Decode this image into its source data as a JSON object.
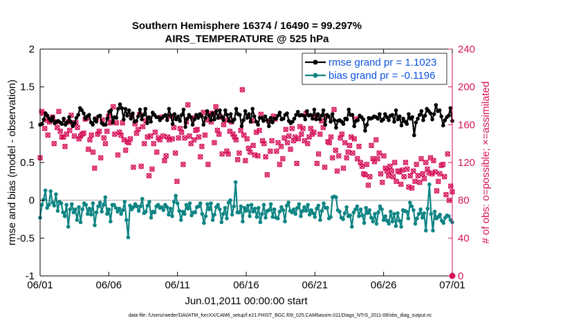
{
  "chart_data": {
    "type": "line",
    "title": "Southern Hemisphere 16374 / 16490 = 99.297%",
    "subtitle": "AIRS_TEMPERATURE @ 525 hPa",
    "xlabel": "Jun.01,2011 00:00:00 start",
    "ylabel": "rmse and bias (model - observation)",
    "y2label": "# of obs: o=possible; ×=assimilated",
    "footnote": "data file: /Users/raeder/DAI/ATM_forcXX/CAM6_setup/f.e21.FHIST_BGC.f09_025.CAM6assim.011/Diags_NTrS_2011-06/obs_diag_output.nc",
    "x_ticks": [
      "06/01",
      "06/06",
      "06/11",
      "06/16",
      "06/21",
      "06/26",
      "07/01"
    ],
    "xlim_days": [
      0,
      30
    ],
    "ylim": [
      -1,
      2
    ],
    "y_ticks": [
      "-1",
      "-0.5",
      "0",
      "0.5",
      "1",
      "1.5",
      "2"
    ],
    "y2lim": [
      0,
      240
    ],
    "y2_ticks": [
      "0",
      "40",
      "80",
      "120",
      "160",
      "200",
      "240"
    ],
    "grid": false,
    "legend_position": "top-right",
    "colors": {
      "rmse": "#000000",
      "bias": "#0f8584",
      "obs": "#d6125a",
      "zero_line": "#c0c0c0",
      "legend_text": "#0b52e0"
    },
    "series": [
      {
        "name": "rmse grand pr = 1.1023",
        "values": [
          1.0,
          1.01,
          1.07,
          1.15,
          1.12,
          1.08,
          1.05,
          1.1,
          1.02,
          1.04,
          1.05,
          1.03,
          1.01,
          1.08,
          1.0,
          1.03,
          1.1,
          1.04,
          0.98,
          1.02,
          1.09,
          1.13,
          1.22,
          1.19,
          1.15,
          1.08,
          1.11,
          1.13,
          1.03,
          1.0,
          1.08,
          1.04,
          1.11,
          1.12,
          1.02,
          1.0,
          1.0,
          1.08,
          1.17,
          1.19,
          1.03,
          1.1,
          1.09,
          1.21,
          1.27,
          1.22,
          1.07,
          1.21,
          1.12,
          1.19,
          1.08,
          1.15,
          1.04,
          1.05,
          1.11,
          1.2,
          1.07,
          1.13,
          1.21,
          1.02,
          1.1,
          1.04,
          1.16,
          1.13,
          1.1,
          1.1,
          1.06,
          1.09,
          1.11,
          1.13,
          1.06,
          1.21,
          1.12,
          1.01,
          1.14,
          1.07,
          1.11,
          1.05,
          1.13,
          1.2,
          0.97,
          1.08,
          1.13,
          1.1,
          1.0,
          1.07,
          1.13,
          1.09,
          1.14,
          1.11,
          1.0,
          1.09,
          1.18,
          1.12,
          1.06,
          1.15,
          1.07,
          1.18,
          1.09,
          1.19,
          1.1,
          1.06,
          1.19,
          1.13,
          1.05,
          1.14,
          1.04,
          1.07,
          1.21,
          1.14,
          1.13,
          0.98,
          1.06,
          1.18,
          1.09,
          1.14,
          1.04,
          1.21,
          1.11,
          1.04,
          1.0,
          1.09,
          1.09,
          1.05,
          1.11,
          1.06,
          0.98,
          1.09,
          1.03,
          1.08,
          1.08,
          1.12,
          1.16,
          1.07,
          1.08,
          1.13,
          1.15,
          1.05,
          1.02,
          1.04,
          1.08,
          1.13,
          1.17,
          1.12,
          1.13,
          1.12,
          1.07,
          1.18,
          1.12,
          1.13,
          1.08,
          1.2,
          1.07,
          1.14,
          1.07,
          1.12,
          1.19,
          1.0,
          1.13,
          1.11,
          1.04,
          1.14,
          1.06,
          0.96,
          1.05,
          1.06,
          1.04,
          1.01,
          1.08,
          1.07,
          1.2,
          1.13,
          1.13,
          0.98,
          1.05,
          1.06,
          1.12,
          1.1,
          1.07,
          0.92,
          1.0,
          1.09,
          1.08,
          1.09,
          1.11,
          1.1,
          1.08,
          1.14,
          1.05,
          1.07,
          1.14,
          1.1,
          1.06,
          1.12,
          1.13,
          1.04,
          1.19,
          1.07,
          1.11,
          0.99,
          1.08,
          1.04,
          1.01,
          1.14,
          1.08,
          1.1,
          0.86,
          1.03,
          1.08,
          1.13,
          1.18,
          1.06,
          1.12,
          1.21,
          1.18,
          1.15,
          1.07,
          1.14,
          1.26,
          1.18,
          1.19,
          1.11,
          0.99,
          1.06,
          1.1,
          1.12,
          1.22,
          1.05
        ]
      },
      {
        "name": "bias grand pr = -0.1196",
        "values": [
          -0.23,
          -0.06,
          0.01,
          0.13,
          -0.1,
          -0.06,
          0.12,
          -0.03,
          -0.07,
          0.08,
          -0.14,
          -0.02,
          -0.04,
          -0.16,
          -0.21,
          -0.06,
          -0.35,
          -0.12,
          -0.05,
          -0.16,
          -0.12,
          -0.26,
          -0.09,
          -0.29,
          -0.12,
          -0.04,
          -0.06,
          -0.18,
          -0.11,
          -0.19,
          -0.04,
          -0.33,
          -0.16,
          -0.08,
          -0.03,
          -0.15,
          -0.06,
          0.04,
          -0.18,
          -0.12,
          -0.28,
          -0.06,
          -0.06,
          -0.1,
          -0.15,
          -0.11,
          -0.18,
          -0.13,
          -0.02,
          -0.26,
          -0.49,
          -0.07,
          -0.12,
          -0.09,
          -0.05,
          -0.08,
          -0.14,
          -0.08,
          0.02,
          -0.17,
          -0.15,
          -0.07,
          -0.02,
          -0.23,
          -0.15,
          -0.16,
          -0.08,
          -0.06,
          -0.1,
          -0.09,
          -0.13,
          -0.06,
          -0.09,
          -0.19,
          -0.11,
          -0.21,
          -0.02,
          0.06,
          -0.04,
          -0.14,
          -0.26,
          -0.15,
          -0.18,
          -0.06,
          -0.11,
          -0.04,
          -0.2,
          -0.16,
          -0.16,
          -0.09,
          -0.08,
          -0.04,
          -0.18,
          -0.3,
          -0.21,
          -0.05,
          -0.12,
          -0.04,
          -0.26,
          -0.19,
          -0.09,
          -0.06,
          -0.12,
          -0.29,
          -0.18,
          -0.1,
          -0.24,
          -0.03,
          0.0,
          -0.19,
          -0.08,
          0.24,
          -0.16,
          -0.16,
          -0.08,
          -0.28,
          -0.1,
          -0.14,
          -0.07,
          -0.21,
          -0.06,
          -0.15,
          -0.11,
          -0.22,
          -0.1,
          -0.29,
          -0.18,
          -0.06,
          -0.23,
          -0.14,
          -0.13,
          -0.05,
          -0.22,
          -0.12,
          -0.23,
          -0.24,
          -0.15,
          -0.09,
          -0.13,
          -0.28,
          -0.07,
          -0.03,
          -0.14,
          -0.16,
          -0.12,
          -0.18,
          -0.1,
          -0.05,
          -0.21,
          -0.14,
          -0.09,
          -0.14,
          -0.06,
          -0.19,
          -0.13,
          -0.17,
          -0.22,
          -0.11,
          -0.07,
          -0.26,
          -0.14,
          -0.04,
          -0.1,
          -0.1,
          -0.24,
          -0.22,
          0.04,
          0.05,
          0.04,
          -0.13,
          -0.15,
          -0.23,
          -0.25,
          -0.17,
          -0.09,
          -0.21,
          -0.2,
          -0.35,
          -0.16,
          -0.12,
          -0.08,
          -0.21,
          -0.12,
          -0.2,
          -0.3,
          -0.1,
          -0.17,
          -0.13,
          -0.23,
          -0.28,
          -0.18,
          -0.31,
          -0.16,
          -0.08,
          -0.12,
          -0.26,
          -0.21,
          -0.27,
          -0.31,
          -0.15,
          -0.28,
          -0.18,
          -0.34,
          -0.17,
          -0.27,
          -0.35,
          -0.13,
          -0.14,
          -0.15,
          -0.24,
          -0.03,
          -0.08,
          -0.13,
          -0.31,
          -0.24,
          -0.18,
          -0.12,
          -0.23,
          -0.17,
          -0.4,
          -0.11,
          0.21,
          -0.18,
          -0.4,
          -0.15,
          -0.24,
          -0.22,
          -0.19,
          -0.27,
          -0.3,
          -0.23,
          -0.2,
          -0.21,
          -0.26,
          -0.29
        ]
      }
    ],
    "obs_counts": [
      125,
      174,
      172,
      156,
      165,
      149,
      163,
      166,
      168,
      140,
      163,
      157,
      174,
      153,
      147,
      147,
      137,
      150,
      163,
      154,
      170,
      162,
      148,
      162,
      157,
      145,
      148,
      150,
      151,
      166,
      167,
      134,
      144,
      149,
      131,
      114,
      166,
      150,
      153,
      125,
      165,
      146,
      140,
      153,
      169,
      162,
      163,
      179,
      150,
      162,
      128,
      152,
      149,
      162,
      144,
      133,
      142,
      141,
      145,
      170,
      115,
      161,
      151,
      155,
      171,
      116,
      158,
      140,
      164,
      147,
      106,
      148,
      113,
      140,
      152,
      131,
      146,
      144,
      168,
      148,
      122,
      127,
      147,
      144,
      169,
      145,
      157,
      130,
      100,
      146,
      156,
      152,
      118,
      146,
      163,
      181,
      148,
      140,
      167,
      144,
      154,
      155,
      147,
      126,
      137,
      173,
      149,
      165,
      118,
      172,
      163,
      172,
      141,
      179,
      154,
      150,
      168,
      129,
      160,
      165,
      132,
      129,
      153,
      163,
      150,
      147,
      144,
      123,
      130,
      154,
      197,
      149,
      122,
      145,
      135,
      131,
      164,
      138,
      128,
      152,
      127,
      154,
      171,
      143,
      140,
      126,
      107,
      164,
      132,
      143,
      169,
      166,
      132,
      141,
      118,
      137,
      124,
      146,
      155,
      141,
      148,
      134,
      156,
      143,
      147,
      119,
      145,
      158,
      150,
      156,
      143,
      172,
      140,
      147,
      156,
      150,
      152,
      168,
      119,
      129,
      150,
      164,
      157,
      115,
      169,
      142,
      141,
      147,
      125,
      176,
      133,
      111,
      127,
      146,
      150,
      114,
      141,
      125,
      131,
      138,
      147,
      130,
      145,
      166,
      124,
      137,
      120,
      116,
      108,
      107,
      118,
      96,
      105,
      138,
      124,
      121,
      144,
      124,
      130,
      108,
      99,
      127,
      114,
      111,
      106,
      116,
      111,
      105,
      120,
      100,
      111,
      110,
      97,
      112,
      105,
      120,
      113,
      94,
      106,
      93,
      111,
      100,
      118,
      106,
      99,
      124,
      108,
      103,
      120,
      113,
      109,
      125,
      108,
      122,
      110,
      90,
      100,
      108,
      117,
      118,
      105,
      86,
      129,
      80,
      95,
      89
    ]
  }
}
